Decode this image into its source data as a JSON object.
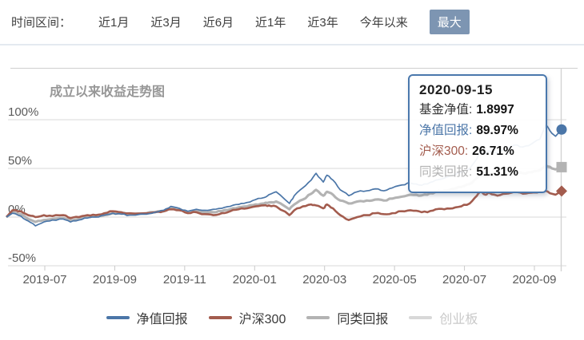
{
  "time_range": {
    "label": "时间区间：",
    "options": [
      {
        "label": "近1月",
        "selected": false
      },
      {
        "label": "近3月",
        "selected": false
      },
      {
        "label": "近6月",
        "selected": false
      },
      {
        "label": "近1年",
        "selected": false
      },
      {
        "label": "近3年",
        "selected": false
      },
      {
        "label": "今年以来",
        "selected": false
      },
      {
        "label": "最大",
        "selected": true
      }
    ],
    "selected_bg": "#7d95b2"
  },
  "chart": {
    "title": "成立以来收益走势图",
    "y_ticks": [
      "100%",
      "50%",
      "0%",
      "-50%"
    ],
    "x_ticks": [
      "2019-07",
      "2019-09",
      "2019-11",
      "2020-01",
      "2020-03",
      "2020-05",
      "2020-07",
      "2020-09"
    ],
    "grid_color": "#d9d9d9",
    "crosshair_color": "#d3d3d3"
  },
  "tooltip": {
    "date": "2020-09-15",
    "rows": [
      {
        "label": "基金净值:",
        "value": "1.8997",
        "color": "#333333"
      },
      {
        "label": "净值回报:",
        "value": "89.97%",
        "color": "#4b76a8"
      },
      {
        "label": "沪深300:",
        "value": "26.71%",
        "color": "#a35c4e"
      },
      {
        "label": "同类回报:",
        "value": "51.31%",
        "color": "#b3b3b3"
      }
    ]
  },
  "legend": [
    {
      "label": "净值回报",
      "color": "#4b76a8",
      "active": true
    },
    {
      "label": "沪深300",
      "color": "#a35c4e",
      "active": true
    },
    {
      "label": "同类回报",
      "color": "#b3b3b3",
      "active": true
    },
    {
      "label": "创业板",
      "color": "#d8d8d8",
      "active": false
    }
  ],
  "chart_data": {
    "type": "line",
    "title": "成立以来收益走势图",
    "y_unit": "%",
    "ylim": [
      -50,
      100
    ],
    "grid": "horizontal-only",
    "legend_position": "bottom",
    "hover_date": "2020-09-15",
    "hover_values": {
      "基金净值": 1.8997,
      "净值回报": 89.97,
      "沪深300": 26.71,
      "同类回报": 51.31
    },
    "x": [
      "2019-06-14",
      "2019-06-19",
      "2019-06-26",
      "2019-07-02",
      "2019-07-08",
      "2019-07-15",
      "2019-07-22",
      "2019-07-31",
      "2019-08-06",
      "2019-08-13",
      "2019-08-20",
      "2019-08-27",
      "2019-09-03",
      "2019-09-10",
      "2019-09-17",
      "2019-09-24",
      "2019-10-08",
      "2019-10-15",
      "2019-10-22",
      "2019-10-28",
      "2019-11-04",
      "2019-11-11",
      "2019-11-18",
      "2019-11-25",
      "2019-12-02",
      "2019-12-09",
      "2019-12-16",
      "2019-12-23",
      "2019-12-30",
      "2020-01-06",
      "2020-01-13",
      "2020-01-17",
      "2020-01-23",
      "2020-02-03",
      "2020-02-07",
      "2020-02-14",
      "2020-02-21",
      "2020-02-25",
      "2020-03-02",
      "2020-03-05",
      "2020-03-10",
      "2020-03-16",
      "2020-03-23",
      "2020-03-30",
      "2020-04-07",
      "2020-04-14",
      "2020-04-21",
      "2020-04-28",
      "2020-05-06",
      "2020-05-13",
      "2020-05-20",
      "2020-05-27",
      "2020-06-03",
      "2020-06-10",
      "2020-06-17",
      "2020-06-24",
      "2020-07-01",
      "2020-07-07",
      "2020-07-10",
      "2020-07-14",
      "2020-07-17",
      "2020-07-24",
      "2020-07-31",
      "2020-08-07",
      "2020-08-14",
      "2020-08-21",
      "2020-08-28",
      "2020-09-02",
      "2020-09-07",
      "2020-09-10",
      "2020-09-15"
    ],
    "series": [
      {
        "name": "净值回报",
        "color": "#4b76a8",
        "width": 1.7,
        "marker": "circle",
        "values": [
          0,
          4,
          1,
          -4,
          -9,
          -5,
          -3,
          -2,
          -5,
          -3,
          -1,
          0,
          2,
          4,
          3,
          2,
          3,
          5,
          7,
          11,
          9,
          6,
          8,
          7,
          8,
          9,
          11,
          13,
          15,
          18,
          20,
          23,
          26,
          14,
          22,
          30,
          38,
          45,
          36,
          43,
          38,
          28,
          22,
          26,
          27,
          29,
          27,
          30,
          33,
          35,
          33,
          34,
          38,
          40,
          43,
          46,
          50,
          60,
          68,
          65,
          68,
          66,
          70,
          74,
          72,
          75,
          80,
          95,
          86,
          83,
          89.97
        ]
      },
      {
        "name": "沪深300",
        "color": "#a35c4e",
        "width": 2.6,
        "marker": "diamond",
        "values": [
          0,
          7,
          6,
          2,
          0,
          2,
          1,
          2,
          -1,
          0,
          2,
          2,
          4,
          6,
          5,
          4,
          4,
          5,
          6,
          8,
          7,
          4,
          5,
          3,
          2,
          4,
          6,
          8,
          9,
          11,
          12,
          12,
          11,
          2,
          7,
          11,
          13,
          12,
          9,
          13,
          9,
          2,
          -3,
          0,
          2,
          4,
          3,
          4,
          6,
          7,
          6,
          5,
          8,
          8,
          9,
          11,
          14,
          22,
          26,
          23,
          25,
          22,
          24,
          26,
          24,
          25,
          26,
          27,
          24,
          23,
          26.71
        ]
      },
      {
        "name": "同类回报",
        "color": "#b3b3b3",
        "width": 3.1,
        "marker": "square",
        "values": [
          0,
          5,
          3,
          -2,
          -5,
          -3,
          -2,
          -1,
          -3,
          -2,
          0,
          1,
          2,
          4,
          4,
          3,
          4,
          5,
          6,
          9,
          8,
          5,
          6,
          5,
          5,
          6,
          8,
          10,
          11,
          13,
          14,
          15,
          16,
          8,
          13,
          18,
          24,
          28,
          22,
          26,
          23,
          17,
          14,
          16,
          17,
          18,
          17,
          19,
          21,
          23,
          22,
          23,
          26,
          27,
          29,
          31,
          34,
          40,
          44,
          42,
          43,
          42,
          44,
          46,
          45,
          46,
          48,
          53,
          50,
          49,
          51.31
        ]
      },
      {
        "name": "创业板",
        "color": "#d8d8d8",
        "hidden": true,
        "values": []
      }
    ]
  }
}
